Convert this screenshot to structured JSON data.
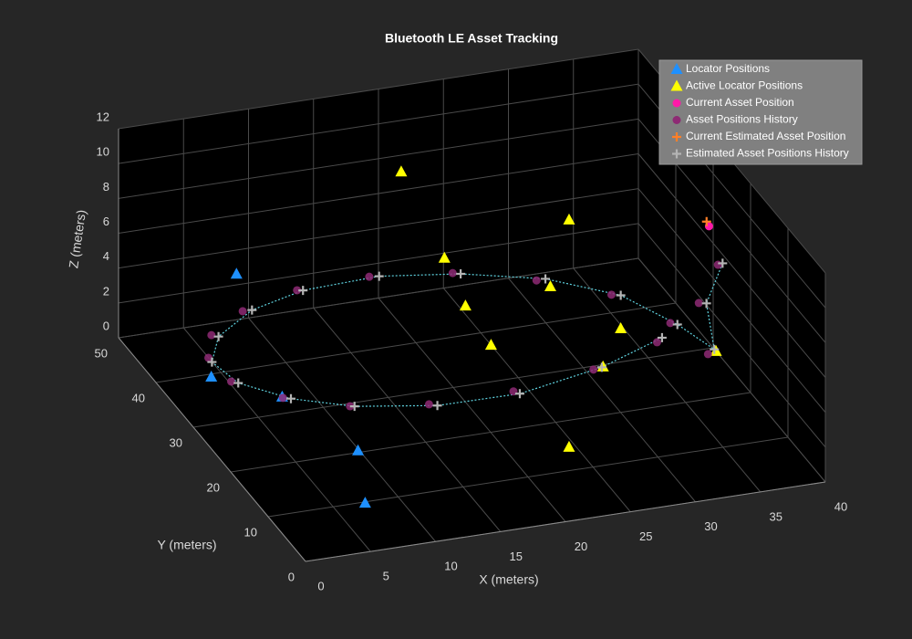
{
  "chart_data": {
    "type": "scatter3d",
    "title": "Bluetooth LE Asset Tracking",
    "xlabel": "X (meters)",
    "ylabel": "Y (meters)",
    "zlabel": "Z (meters)",
    "xlim": [
      0,
      40
    ],
    "ylim": [
      0,
      50
    ],
    "zlim": [
      0,
      12
    ],
    "xticks": [
      0,
      5,
      10,
      15,
      20,
      25,
      30,
      35,
      40
    ],
    "yticks": [
      0,
      10,
      20,
      30,
      40,
      50
    ],
    "zticks": [
      0,
      2,
      4,
      6,
      8,
      10,
      12
    ],
    "grid": true,
    "legend": "northeast",
    "series": [
      {
        "name": "Locator Positions",
        "color": "#1e90ff",
        "marker": "triangle",
        "x": [
          8.7,
          2.1,
          5.8,
          8.9,
          6.4
        ],
        "y": [
          48.7,
          32.5,
          26.4,
          16.9,
          6.3
        ],
        "z": [
          3,
          2,
          2,
          1,
          1
        ]
      },
      {
        "name": "Active Locator Positions",
        "color": "#ffff00",
        "marker": "triangle",
        "x": [
          20.8,
          31.5,
          22.8,
          29.4,
          23.5,
          32.8,
          24.0,
          38.0,
          30.4,
          23.5
        ],
        "y": [
          46.7,
          39.0,
          42.1,
          36.7,
          38.9,
          29.7,
          33.8,
          22.3,
          26.1,
          11.2
        ],
        "z": [
          8,
          6,
          4,
          3,
          2,
          2,
          1,
          2,
          1,
          1
        ]
      },
      {
        "name": "Current Asset Position",
        "color": "#ff1aa8",
        "marker": "circle",
        "x": [
          38.7
        ],
        "y": [
          26.6
        ],
        "z": [
          8
        ]
      },
      {
        "name": "Asset Positions History",
        "color": "#8e2a74",
        "marker": "circle",
        "x": [
          34.5,
          28.6,
          21.9,
          15.4,
          9.9,
          5.8,
          3.2,
          3.0,
          4.5,
          8.0,
          12.9,
          18.6,
          24.5,
          29.8,
          34.1,
          36.5,
          37.3,
          37.6,
          39.1
        ],
        "y": [
          25.9,
          22.4,
          20.5,
          20.5,
          22.5,
          26.2,
          31.0,
          36.4,
          40.8,
          44.6,
          47.1,
          47.6,
          45.8,
          41.8,
          36.7,
          29.3,
          22.0,
          25.5,
          25.6
        ],
        "z": [
          2,
          2,
          2,
          2,
          2,
          2,
          2,
          2,
          2,
          2,
          2,
          2,
          2,
          2,
          2,
          2,
          2,
          4,
          6
        ]
      },
      {
        "name": "Current Estimated Asset Position",
        "color": "#ff7f27",
        "marker": "plus",
        "x": [
          38.6
        ],
        "y": [
          26.9
        ],
        "z": [
          8.2
        ]
      },
      {
        "name": "Estimated Asset Positions History",
        "color": "#b4b4b4",
        "marker": "plus",
        "line_color": "#5fd3e0",
        "x": [
          35.0,
          29.3,
          22.3,
          15.9,
          10.1,
          6.3,
          3.6,
          3.1,
          4.9,
          8.6,
          13.3,
          19.3,
          25.0,
          30.4,
          34.7,
          36.9,
          37.9,
          38.1,
          39.4
        ],
        "y": [
          26.3,
          22.6,
          20.2,
          20.0,
          22.0,
          25.8,
          30.5,
          35.8,
          40.3,
          44.2,
          46.9,
          47.4,
          45.4,
          41.5,
          36.3,
          28.8,
          22.4,
          25.2,
          25.4
        ],
        "z": [
          2.1,
          2.0,
          1.9,
          2.0,
          2.1,
          2.0,
          2.0,
          1.9,
          2.0,
          2.1,
          2.0,
          2.0,
          2.0,
          2.1,
          2.0,
          2.0,
          2.1,
          4.0,
          6.1
        ]
      }
    ]
  }
}
